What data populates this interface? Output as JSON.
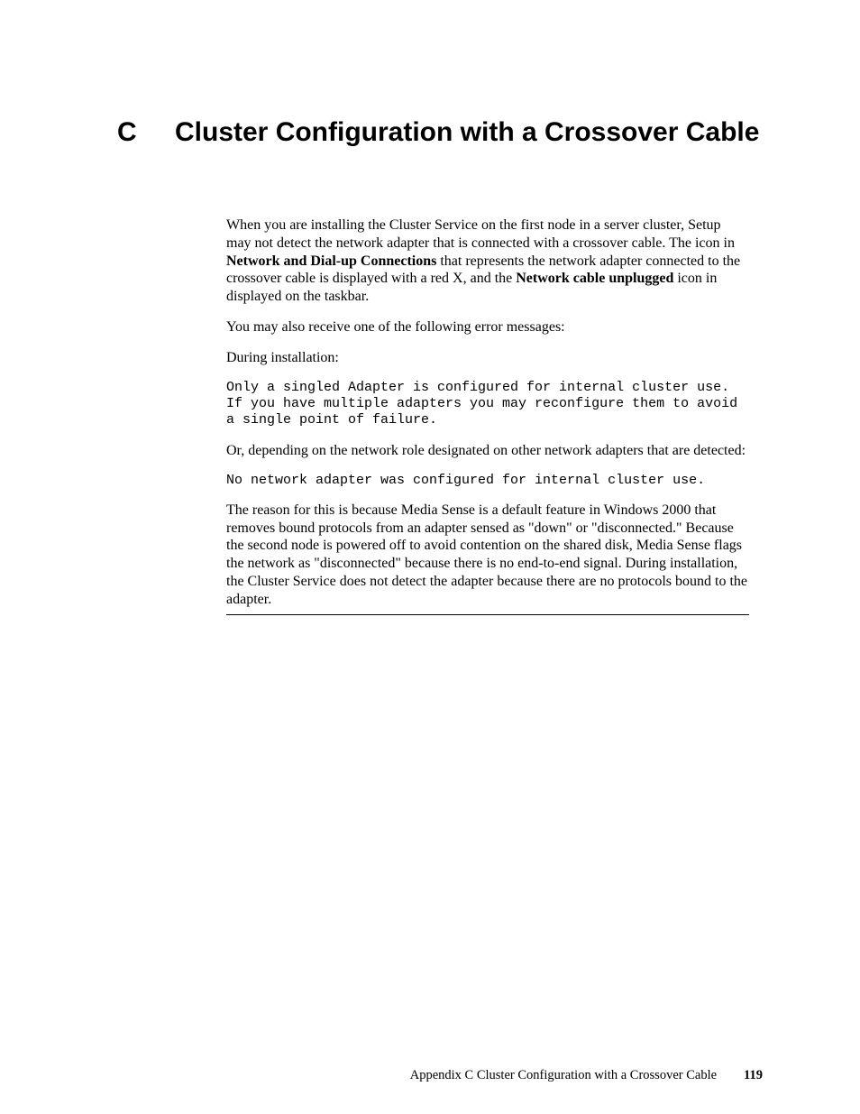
{
  "heading": {
    "letter": "C",
    "title": "Cluster Configuration with a Crossover Cable"
  },
  "body": {
    "p1_a": "When you are installing the Cluster Service on the first node in a server cluster, Setup may not detect the network adapter that is connected with a crossover cable. The icon in ",
    "p1_b1": "Network and Dial-up Connections",
    "p1_c": " that represents the network adapter connected to the crossover cable is displayed with a red X, and the ",
    "p1_b2": "Network cable unplugged",
    "p1_d": " icon in displayed on the taskbar.",
    "p2": "You may also receive one of the following error messages:",
    "p3": "During installation:",
    "code1": "Only a singled Adapter is configured for internal cluster use. If you have multiple adapters you may reconfigure them to avoid a single point of failure.",
    "p4": "Or, depending on the network role designated on other network adapters that are detected:",
    "code2": "No network adapter was configured for internal cluster use.",
    "p5": "The reason for this is because Media Sense is a default feature in Windows 2000 that removes bound protocols from an adapter sensed as \"down\" or \"disconnected.\" Because the second node is powered off to avoid contention on the shared disk, Media Sense flags the network as \"disconnected\" because there is no end-to-end signal. During installation, the Cluster Service does not detect the adapter because there are no protocols bound to the adapter."
  },
  "footer": {
    "text": "Appendix C Cluster Configuration with a Crossover Cable",
    "page": "119"
  }
}
